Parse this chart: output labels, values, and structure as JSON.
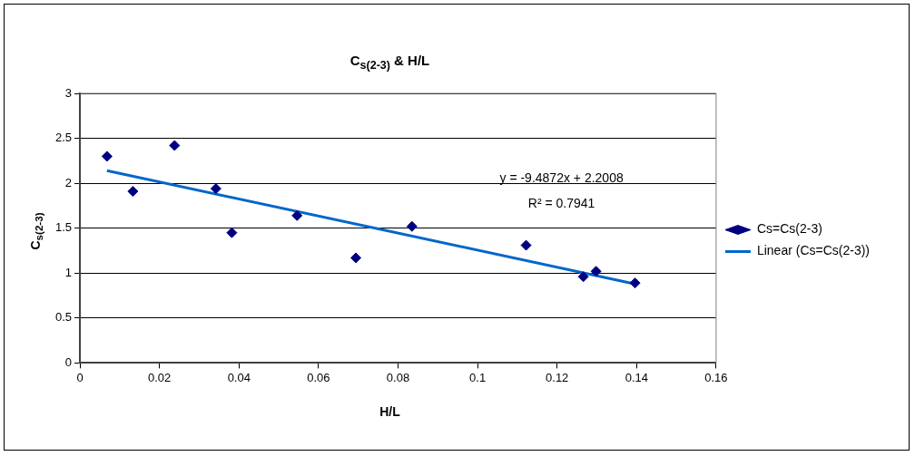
{
  "chart_data": {
    "type": "scatter",
    "title": "C$_{s(2-3)}$ & H/L",
    "xlabel": "H/L",
    "ylabel": "C$_{s(2-3)}$",
    "series": [
      {
        "name": "Cs=Cs(2-3)",
        "color": "#000080",
        "marker": "diamond",
        "x": [
          0.0068,
          0.0133,
          0.0238,
          0.0342,
          0.0382,
          0.0546,
          0.0694,
          0.0835,
          0.1122,
          0.1266,
          0.1298,
          0.1396
        ],
        "values": [
          2.3,
          1.91,
          2.42,
          1.94,
          1.45,
          1.64,
          1.17,
          1.52,
          1.31,
          0.96,
          1.02,
          0.89
        ]
      },
      {
        "name": "Linear (Cs=Cs(2-3))",
        "type": "line",
        "color": "#0066cc",
        "marker": "none",
        "x": [
          0.0068,
          0.1396
        ],
        "values": [
          2.14,
          0.88
        ]
      }
    ],
    "annotations": [
      "y = -9.4872x + 2.2008",
      "R² = 0.7941"
    ],
    "xlim": [
      0,
      0.16
    ],
    "xticks": [
      0,
      0.02,
      0.04,
      0.06,
      0.08,
      0.1,
      0.12,
      0.14,
      0.16
    ],
    "ylim": [
      0,
      3
    ],
    "yticks": [
      0,
      0.5,
      1,
      1.5,
      2,
      2.5,
      3
    ],
    "grid": "y",
    "legend": "right"
  }
}
